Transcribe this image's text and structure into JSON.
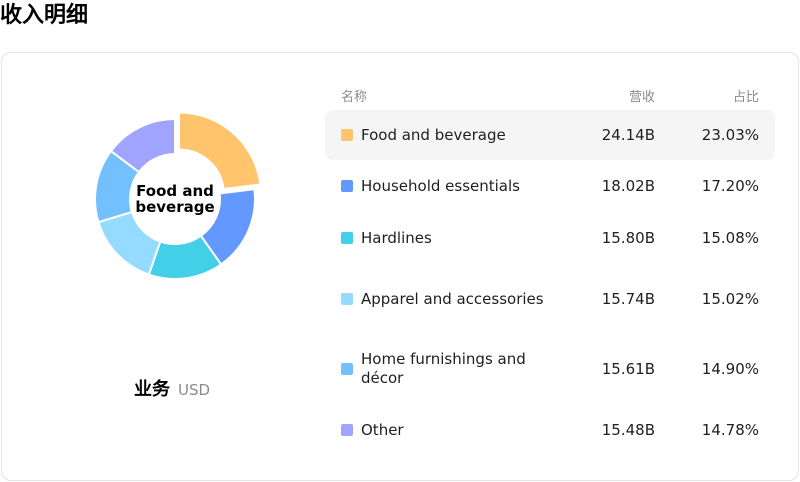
{
  "page": {
    "title": "收入明细"
  },
  "table": {
    "headers": {
      "name": "名称",
      "revenue": "营收",
      "share": "占比"
    }
  },
  "caption": {
    "name": "业务",
    "unit": "USD"
  },
  "chart_data": {
    "type": "pie",
    "donut": true,
    "center_label": "Food and beverage",
    "categories": [
      "Food and beverage",
      "Household essentials",
      "Hardlines",
      "Apparel and accessories",
      "Home furnishings and décor",
      "Other"
    ],
    "values": [
      24.14,
      18.02,
      15.8,
      15.74,
      15.61,
      15.48
    ],
    "value_labels": [
      "24.14B",
      "18.02B",
      "15.80B",
      "15.74B",
      "15.61B",
      "15.48B"
    ],
    "shares": [
      23.03,
      17.2,
      15.08,
      15.02,
      14.9,
      14.78
    ],
    "share_labels": [
      "23.03%",
      "17.20%",
      "15.08%",
      "15.02%",
      "14.90%",
      "14.78%"
    ],
    "colors": [
      "#ffc46c",
      "#6398ff",
      "#42d0e8",
      "#94dbff",
      "#73c0ff",
      "#a0a4ff"
    ],
    "highlight_index": 0
  }
}
